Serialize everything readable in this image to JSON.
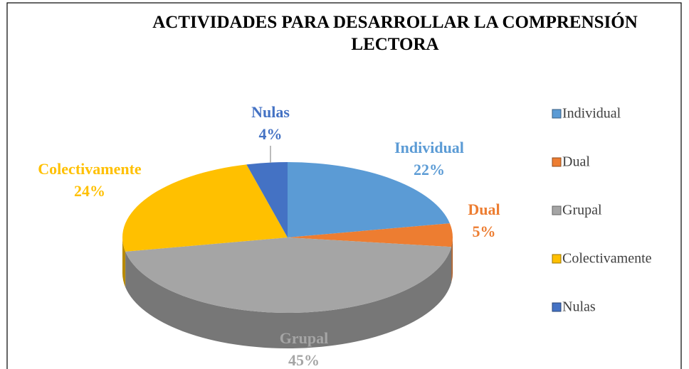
{
  "chart_data": {
    "type": "pie",
    "title": "ACTIVIDADES PARA DESARROLLAR LA COMPRENSIÓN LECTORA",
    "categories": [
      "Individual",
      "Dual",
      "Grupal",
      "Colectivamente",
      "Nulas"
    ],
    "values": [
      22,
      5,
      45,
      24,
      4
    ],
    "value_labels": [
      "22%",
      "5%",
      "45%",
      "24%",
      "4%"
    ],
    "colors": [
      "#5b9bd5",
      "#ed7d31",
      "#a5a5a5",
      "#ffc000",
      "#4472c4"
    ],
    "legend": "right"
  }
}
